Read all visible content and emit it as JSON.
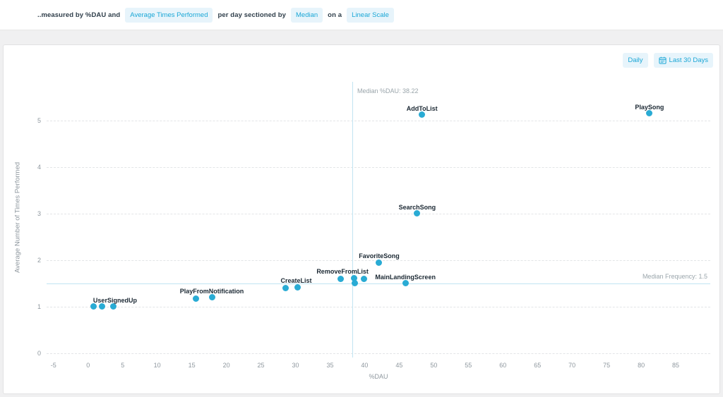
{
  "header": {
    "segments": [
      {
        "text": "..measured by %DAU and"
      },
      {
        "text": "Average Times Performed"
      },
      {
        "text": "per day sectioned by"
      },
      {
        "text": "Median"
      },
      {
        "text": "on a"
      },
      {
        "text": "Linear Scale"
      }
    ]
  },
  "toolbar": {
    "daily_label": "Daily",
    "range_label": "Last 30 Days",
    "range_icon": "calendar-icon"
  },
  "colors": {
    "accent": "#1ba7d6",
    "pill_bg": "#e7f4fb",
    "dot": "#29abd4",
    "median_line": "#c0e4f2",
    "grid": "#e3e5e7",
    "text_dark": "#2f3e4a",
    "text_muted": "#8e979e"
  },
  "chart_data": {
    "type": "scatter",
    "xlabel": "%DAU",
    "ylabel": "Average Number of Times Performed",
    "xlim": [
      -6,
      90
    ],
    "ylim": [
      0,
      5.83
    ],
    "xticks": [
      -5,
      0,
      5,
      10,
      15,
      20,
      25,
      30,
      35,
      40,
      45,
      50,
      55,
      60,
      65,
      70,
      75,
      80,
      85
    ],
    "yticks": [
      0,
      1,
      2,
      3,
      4,
      5
    ],
    "grid": "dashed",
    "legend": "none",
    "median_x": {
      "value": 38.22,
      "label": "Median %DAU: 38.22"
    },
    "median_y": {
      "value": 1.5,
      "label": "Median Frequency: 1.5"
    },
    "dot_color": "#29abd4",
    "series": [
      {
        "name": "UserSignedUp",
        "label_at": [
          3.9,
          1.0
        ],
        "points": [
          [
            0.8,
            1.0
          ],
          [
            2.0,
            1.0
          ],
          [
            3.7,
            1.0
          ]
        ]
      },
      {
        "name": "PlayFromNotification",
        "label_at": [
          17.9,
          1.2
        ],
        "points": [
          [
            15.6,
            1.18
          ],
          [
            17.9,
            1.2
          ]
        ]
      },
      {
        "name": "CreateList",
        "label_at": [
          30.1,
          1.42
        ],
        "points": [
          [
            28.6,
            1.4
          ],
          [
            30.3,
            1.42
          ]
        ]
      },
      {
        "name": "RemoveFromList",
        "label_at": [
          36.8,
          1.62
        ],
        "points": [
          [
            36.5,
            1.6
          ],
          [
            38.5,
            1.62
          ],
          [
            38.6,
            1.5
          ],
          [
            39.9,
            1.6
          ]
        ]
      },
      {
        "name": "FavoriteSong",
        "label_at": [
          42.1,
          1.95
        ],
        "points": [
          [
            42.1,
            1.95
          ]
        ]
      },
      {
        "name": "MainLandingScreen",
        "label_at": [
          45.9,
          1.5
        ],
        "points": [
          [
            45.9,
            1.5
          ]
        ]
      },
      {
        "name": "SearchSong",
        "label_at": [
          47.6,
          3.0
        ],
        "points": [
          [
            47.6,
            3.0
          ]
        ]
      },
      {
        "name": "AddToList",
        "label_at": [
          48.3,
          5.12
        ],
        "points": [
          [
            48.3,
            5.12
          ]
        ]
      },
      {
        "name": "PlaySong",
        "label_at": [
          81.2,
          5.15
        ],
        "points": [
          [
            81.2,
            5.15
          ]
        ]
      }
    ]
  }
}
